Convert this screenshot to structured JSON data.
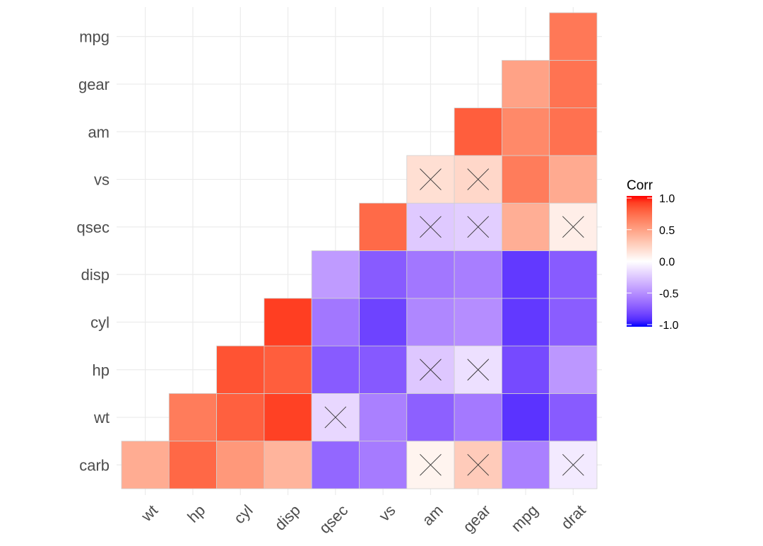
{
  "chart_data": {
    "type": "heatmap",
    "title": "",
    "xlabel": "",
    "ylabel": "",
    "x_categories": [
      "wt",
      "hp",
      "cyl",
      "disp",
      "qsec",
      "vs",
      "am",
      "gear",
      "mpg",
      "drat"
    ],
    "y_categories": [
      "carb",
      "wt",
      "hp",
      "cyl",
      "disp",
      "qsec",
      "vs",
      "am",
      "gear",
      "mpg"
    ],
    "legend": {
      "title": "Corr",
      "ticks": [
        "1.0",
        "0.5",
        "0.0",
        "-0.5",
        "-1.0"
      ],
      "tick_values": [
        1,
        0.5,
        0,
        -0.5,
        -1
      ],
      "placement": "right",
      "low_color": "#0000ff",
      "mid_color": "#ffffff",
      "high_color": "#ff0000",
      "range": [
        -1,
        1
      ]
    },
    "grid": true,
    "insignificant_marker": "X",
    "cells": [
      {
        "y": "carb",
        "x": "wt",
        "value": 0.43
      },
      {
        "y": "carb",
        "x": "hp",
        "value": 0.75
      },
      {
        "y": "carb",
        "x": "cyl",
        "value": 0.53
      },
      {
        "y": "carb",
        "x": "disp",
        "value": 0.39
      },
      {
        "y": "carb",
        "x": "qsec",
        "value": -0.66
      },
      {
        "y": "carb",
        "x": "vs",
        "value": -0.57
      },
      {
        "y": "carb",
        "x": "am",
        "value": 0.06,
        "insignificant": true
      },
      {
        "y": "carb",
        "x": "gear",
        "value": 0.27,
        "insignificant": true
      },
      {
        "y": "carb",
        "x": "mpg",
        "value": -0.55
      },
      {
        "y": "carb",
        "x": "drat",
        "value": -0.09,
        "insignificant": true
      },
      {
        "y": "wt",
        "x": "hp",
        "value": 0.66
      },
      {
        "y": "wt",
        "x": "cyl",
        "value": 0.78
      },
      {
        "y": "wt",
        "x": "disp",
        "value": 0.89
      },
      {
        "y": "wt",
        "x": "qsec",
        "value": -0.17,
        "insignificant": true
      },
      {
        "y": "wt",
        "x": "vs",
        "value": -0.55
      },
      {
        "y": "wt",
        "x": "am",
        "value": -0.69
      },
      {
        "y": "wt",
        "x": "gear",
        "value": -0.58
      },
      {
        "y": "wt",
        "x": "mpg",
        "value": -0.87
      },
      {
        "y": "wt",
        "x": "drat",
        "value": -0.71
      },
      {
        "y": "hp",
        "x": "cyl",
        "value": 0.83
      },
      {
        "y": "hp",
        "x": "disp",
        "value": 0.79
      },
      {
        "y": "hp",
        "x": "qsec",
        "value": -0.71
      },
      {
        "y": "hp",
        "x": "vs",
        "value": -0.72
      },
      {
        "y": "hp",
        "x": "am",
        "value": -0.24,
        "insignificant": true
      },
      {
        "y": "hp",
        "x": "gear",
        "value": -0.13,
        "insignificant": true
      },
      {
        "y": "hp",
        "x": "mpg",
        "value": -0.78
      },
      {
        "y": "hp",
        "x": "drat",
        "value": -0.45
      },
      {
        "y": "cyl",
        "x": "disp",
        "value": 0.9
      },
      {
        "y": "cyl",
        "x": "qsec",
        "value": -0.59
      },
      {
        "y": "cyl",
        "x": "vs",
        "value": -0.81
      },
      {
        "y": "cyl",
        "x": "am",
        "value": -0.52
      },
      {
        "y": "cyl",
        "x": "gear",
        "value": -0.49
      },
      {
        "y": "cyl",
        "x": "mpg",
        "value": -0.85
      },
      {
        "y": "cyl",
        "x": "drat",
        "value": -0.7
      },
      {
        "y": "disp",
        "x": "qsec",
        "value": -0.43
      },
      {
        "y": "disp",
        "x": "vs",
        "value": -0.71
      },
      {
        "y": "disp",
        "x": "am",
        "value": -0.59
      },
      {
        "y": "disp",
        "x": "gear",
        "value": -0.56
      },
      {
        "y": "disp",
        "x": "mpg",
        "value": -0.85
      },
      {
        "y": "disp",
        "x": "drat",
        "value": -0.71
      },
      {
        "y": "qsec",
        "x": "vs",
        "value": 0.74
      },
      {
        "y": "qsec",
        "x": "am",
        "value": -0.23,
        "insignificant": true
      },
      {
        "y": "qsec",
        "x": "gear",
        "value": -0.21,
        "insignificant": true
      },
      {
        "y": "qsec",
        "x": "mpg",
        "value": 0.42
      },
      {
        "y": "qsec",
        "x": "drat",
        "value": 0.09,
        "insignificant": true
      },
      {
        "y": "vs",
        "x": "am",
        "value": 0.17,
        "insignificant": true
      },
      {
        "y": "vs",
        "x": "gear",
        "value": 0.21,
        "insignificant": true
      },
      {
        "y": "vs",
        "x": "mpg",
        "value": 0.66
      },
      {
        "y": "vs",
        "x": "drat",
        "value": 0.44
      },
      {
        "y": "am",
        "x": "gear",
        "value": 0.79
      },
      {
        "y": "am",
        "x": "mpg",
        "value": 0.6
      },
      {
        "y": "am",
        "x": "drat",
        "value": 0.71
      },
      {
        "y": "gear",
        "x": "mpg",
        "value": 0.48
      },
      {
        "y": "gear",
        "x": "drat",
        "value": 0.7
      },
      {
        "y": "mpg",
        "x": "drat",
        "value": 0.68
      }
    ]
  }
}
